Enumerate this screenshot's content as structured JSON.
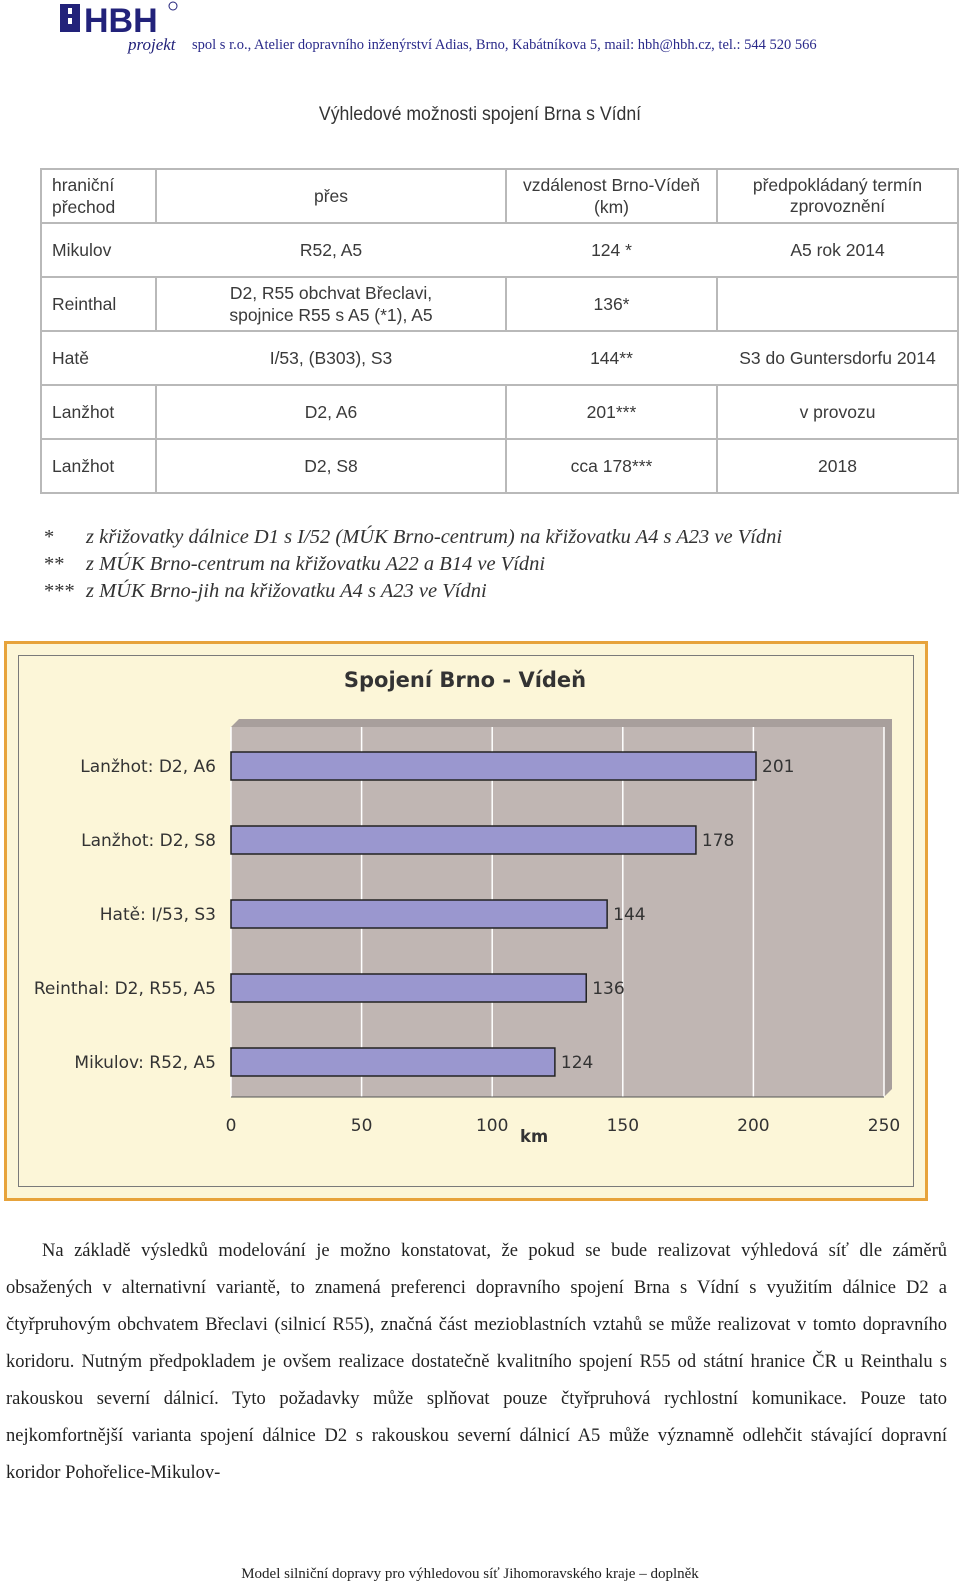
{
  "header": {
    "logo_text": "HBH",
    "logo_sub": "projekt",
    "company_line": "spol s r.o., Atelier dopravního inženýrství Adias, Brno, Kabátníkova 5, mail: hbh@hbh.cz, tel.: 544 520 566",
    "colors": {
      "logo_blue": "#22227a",
      "header_text": "#2a2a8a"
    }
  },
  "title": "Výhledové možnosti spojení Brna s Vídní",
  "table": {
    "headers": [
      "hraniční přechod",
      "přes",
      "vzdálenost Brno-Vídeň (km)",
      "předpokládaný termín zprovoznění"
    ],
    "rows": [
      [
        "Mikulov",
        "R52, A5",
        "124 *",
        "A5  rok 2014"
      ],
      [
        "Reinthal",
        "D2, R55 obchvat Břeclavi, spojnice R55 s A5 (*1), A5",
        "136*",
        ""
      ],
      [
        "Hatě",
        "I/53, (B303), S3",
        "144**",
        "S3 do Guntersdorfu 2014"
      ],
      [
        "Lanžhot",
        "D2, A6",
        "201***",
        "v provozu"
      ],
      [
        "Lanžhot",
        "D2, S8",
        "cca 178***",
        "2018"
      ]
    ]
  },
  "footnotes": [
    {
      "mark": "*",
      "text": "z křižovatky dálnice D1 s I/52 (MÚK Brno-centrum) na křižovatku A4 s A23 ve Vídni"
    },
    {
      "mark": "**",
      "text": "z MÚK Brno-centrum na křižovatku A22 a B14 ve Vídni"
    },
    {
      "mark": "***",
      "text": "z MÚK Brno-jih na křižovatku A4 s A23 ve Vídni"
    }
  ],
  "chart_data": {
    "type": "bar",
    "orientation": "horizontal",
    "title": "Spojení Brno - Vídeň",
    "xlabel": "km",
    "categories": [
      "Lanžhot: D2, A6",
      "Lanžhot: D2, S8",
      "Hatě: I/53, S3",
      "Reinthal: D2, R55, A5",
      "Mikulov: R52, A5"
    ],
    "values": [
      201,
      178,
      144,
      136,
      124
    ],
    "xlim": [
      0,
      250
    ],
    "xticks": [
      0,
      50,
      100,
      150,
      200,
      250
    ],
    "data_labels": true,
    "grid": true,
    "colors": {
      "bar": "#9a97cf",
      "plot_bg": "#c0b6b3",
      "frame_bg": "#fcf6d8",
      "frame_border": "#e7a33b"
    }
  },
  "paragraph": "Na základě výsledků modelování je možno konstatovat, že pokud se bude realizovat výhledová síť dle záměrů obsažených v alternativní variantě, to znamená preferenci dopravního spojení Brna s Vídní s využitím dálnice D2 a čtyřpruhovým obchvatem Břeclavi (silnicí R55), značná část mezioblastních vztahů se může realizovat v tomto dopravního koridoru. Nutným předpokladem je ovšem realizace dostatečně kvalitního spojení R55 od státní hranice ČR u Reinthalu s rakouskou severní dálnicí. Tyto požadavky může splňovat pouze čtyřpruhová rychlostní komunikace. Pouze tato nejkomfortnější varianta spojení dálnice D2 s rakouskou severní dálnicí A5 může významně odlehčit stávající dopravní koridor Pohořelice-Mikulov-",
  "footer": "Model silniční dopravy pro výhledovou síť Jihomoravského kraje – doplněk"
}
